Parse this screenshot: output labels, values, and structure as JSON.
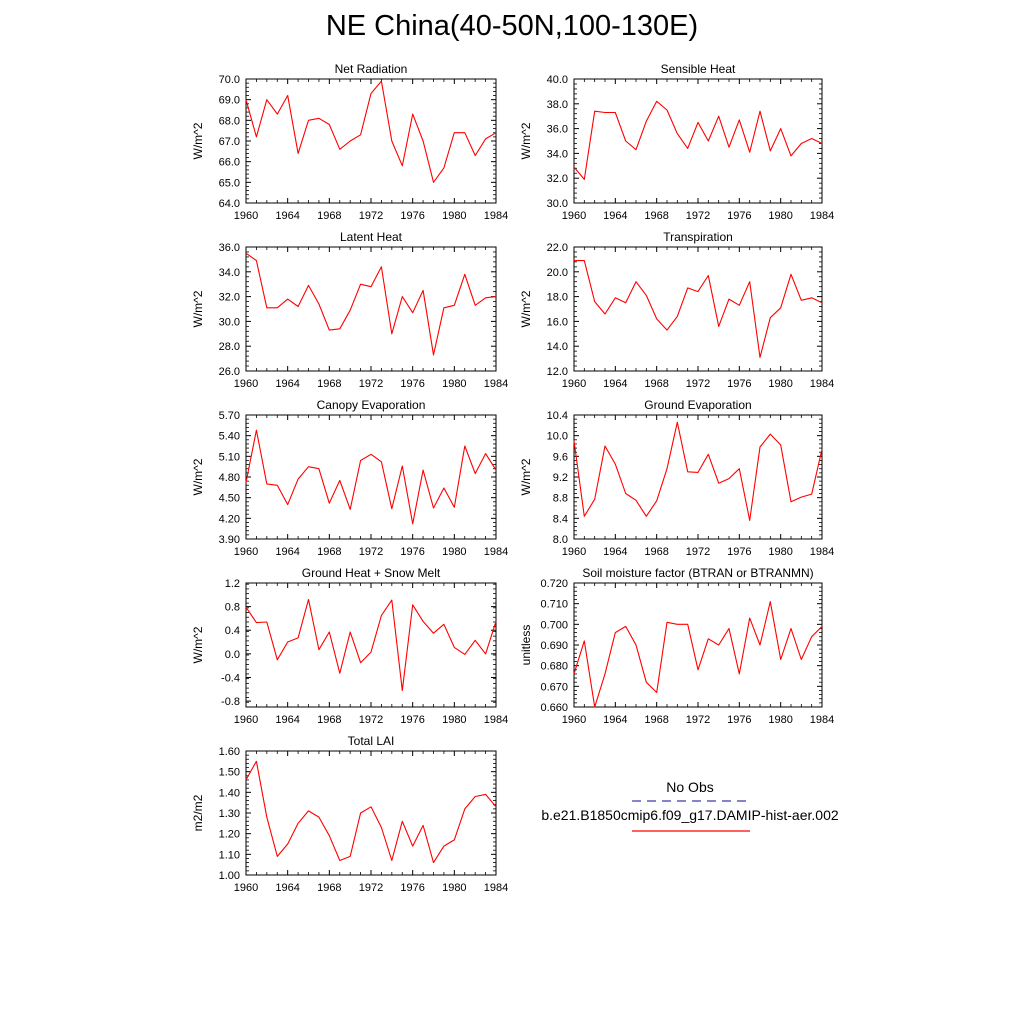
{
  "title": "NE China(40-50N,100-130E)",
  "colors": {
    "model_line": "#ff0000",
    "obs_line": "#3b3bb0",
    "axes": "#000000"
  },
  "legend": {
    "obs_label": "No Obs",
    "model_label": "b.e21.B1850cmip6.f09_g17.DAMIP-hist-aer.002"
  },
  "chart_data": [
    {
      "type": "line",
      "title": "Net Radiation",
      "xlabel": "",
      "ylabel": "W/m^2",
      "xlim": [
        1960,
        1984
      ],
      "ylim": [
        64.0,
        70.0
      ],
      "xticks": [
        1960,
        1964,
        1968,
        1972,
        1976,
        1980,
        1984
      ],
      "yticks": [
        "64.0",
        "65.0",
        "66.0",
        "67.0",
        "68.0",
        "69.0",
        "70.0"
      ],
      "x": [
        1960,
        1961,
        1962,
        1963,
        1964,
        1965,
        1966,
        1967,
        1968,
        1969,
        1970,
        1971,
        1972,
        1973,
        1974,
        1975,
        1976,
        1977,
        1978,
        1979,
        1980,
        1981,
        1982,
        1983,
        1984
      ],
      "values": [
        69.0,
        67.2,
        69.0,
        68.3,
        69.2,
        66.4,
        68.0,
        68.1,
        67.8,
        66.6,
        67.0,
        67.3,
        69.3,
        69.9,
        67.0,
        65.8,
        68.3,
        67.0,
        65.0,
        65.7,
        67.4,
        67.4,
        66.3,
        67.1,
        67.4
      ]
    },
    {
      "type": "line",
      "title": "Sensible Heat",
      "xlabel": "",
      "ylabel": "W/m^2",
      "xlim": [
        1960,
        1984
      ],
      "ylim": [
        30.0,
        40.0
      ],
      "xticks": [
        1960,
        1964,
        1968,
        1972,
        1976,
        1980,
        1984
      ],
      "yticks": [
        "30.0",
        "32.0",
        "34.0",
        "36.0",
        "38.0",
        "40.0"
      ],
      "x": [
        1960,
        1961,
        1962,
        1963,
        1964,
        1965,
        1966,
        1967,
        1968,
        1969,
        1970,
        1971,
        1972,
        1973,
        1974,
        1975,
        1976,
        1977,
        1978,
        1979,
        1980,
        1981,
        1982,
        1983,
        1984
      ],
      "values": [
        32.9,
        31.9,
        37.4,
        37.3,
        37.3,
        35.0,
        34.3,
        36.6,
        38.2,
        37.5,
        35.6,
        34.4,
        36.5,
        35.0,
        37.0,
        34.5,
        36.7,
        34.1,
        37.4,
        34.2,
        36.0,
        33.8,
        34.8,
        35.2,
        34.8
      ]
    },
    {
      "type": "line",
      "title": "Latent Heat",
      "xlabel": "",
      "ylabel": "W/m^2",
      "xlim": [
        1960,
        1984
      ],
      "ylim": [
        26.0,
        36.0
      ],
      "xticks": [
        1960,
        1964,
        1968,
        1972,
        1976,
        1980,
        1984
      ],
      "yticks": [
        "26.0",
        "28.0",
        "30.0",
        "32.0",
        "34.0",
        "36.0"
      ],
      "x": [
        1960,
        1961,
        1962,
        1963,
        1964,
        1965,
        1966,
        1967,
        1968,
        1969,
        1970,
        1971,
        1972,
        1973,
        1974,
        1975,
        1976,
        1977,
        1978,
        1979,
        1980,
        1981,
        1982,
        1983,
        1984
      ],
      "values": [
        35.5,
        34.9,
        31.1,
        31.1,
        31.8,
        31.2,
        32.9,
        31.4,
        29.3,
        29.4,
        30.9,
        33.0,
        32.8,
        34.4,
        29.0,
        32.0,
        30.7,
        32.5,
        27.3,
        31.1,
        31.3,
        33.8,
        31.3,
        31.9,
        32.0
      ]
    },
    {
      "type": "line",
      "title": "Transpiration",
      "xlabel": "",
      "ylabel": "W/m^2",
      "xlim": [
        1960,
        1984
      ],
      "ylim": [
        12.0,
        22.0
      ],
      "xticks": [
        1960,
        1964,
        1968,
        1972,
        1976,
        1980,
        1984
      ],
      "yticks": [
        "12.0",
        "14.0",
        "16.0",
        "18.0",
        "20.0",
        "22.0"
      ],
      "x": [
        1960,
        1961,
        1962,
        1963,
        1964,
        1965,
        1966,
        1967,
        1968,
        1969,
        1970,
        1971,
        1972,
        1973,
        1974,
        1975,
        1976,
        1977,
        1978,
        1979,
        1980,
        1981,
        1982,
        1983,
        1984
      ],
      "values": [
        20.9,
        20.9,
        17.6,
        16.6,
        17.9,
        17.5,
        19.2,
        18.1,
        16.2,
        15.3,
        16.4,
        18.7,
        18.4,
        19.7,
        15.6,
        17.8,
        17.3,
        19.2,
        13.1,
        16.3,
        17.1,
        19.8,
        17.7,
        17.9,
        17.5
      ]
    },
    {
      "type": "line",
      "title": "Canopy Evaporation",
      "xlabel": "",
      "ylabel": "W/m^2",
      "xlim": [
        1960,
        1984
      ],
      "ylim": [
        3.9,
        5.7
      ],
      "xticks": [
        1960,
        1964,
        1968,
        1972,
        1976,
        1980,
        1984
      ],
      "yticks": [
        "3.90",
        "4.20",
        "4.50",
        "4.80",
        "5.10",
        "5.40",
        "5.70"
      ],
      "x": [
        1960,
        1961,
        1962,
        1963,
        1964,
        1965,
        1966,
        1967,
        1968,
        1969,
        1970,
        1971,
        1972,
        1973,
        1974,
        1975,
        1976,
        1977,
        1978,
        1979,
        1980,
        1981,
        1982,
        1983,
        1984
      ],
      "values": [
        4.72,
        5.48,
        4.7,
        4.68,
        4.4,
        4.77,
        4.95,
        4.92,
        4.42,
        4.75,
        4.33,
        5.04,
        5.13,
        5.02,
        4.34,
        4.96,
        4.12,
        4.9,
        4.35,
        4.64,
        4.36,
        5.25,
        4.85,
        5.14,
        4.9
      ]
    },
    {
      "type": "line",
      "title": "Ground Evaporation",
      "xlabel": "",
      "ylabel": "W/m^2",
      "xlim": [
        1960,
        1984
      ],
      "ylim": [
        8.0,
        10.4
      ],
      "xticks": [
        1960,
        1964,
        1968,
        1972,
        1976,
        1980,
        1984
      ],
      "yticks": [
        "8.0",
        "8.4",
        "8.8",
        "9.2",
        "9.6",
        "10.0",
        "10.4"
      ],
      "x": [
        1960,
        1961,
        1962,
        1963,
        1964,
        1965,
        1966,
        1967,
        1968,
        1969,
        1970,
        1971,
        1972,
        1973,
        1974,
        1975,
        1976,
        1977,
        1978,
        1979,
        1980,
        1981,
        1982,
        1983,
        1984
      ],
      "values": [
        9.9,
        8.44,
        8.77,
        9.8,
        9.45,
        8.88,
        8.75,
        8.44,
        8.74,
        9.36,
        10.26,
        9.3,
        9.29,
        9.64,
        9.08,
        9.17,
        9.36,
        8.36,
        9.78,
        10.03,
        9.82,
        8.72,
        8.81,
        8.87,
        9.74
      ]
    },
    {
      "type": "line",
      "title": "Ground Heat + Snow Melt",
      "xlabel": "",
      "ylabel": "W/m^2",
      "xlim": [
        1960,
        1984
      ],
      "ylim": [
        -0.9,
        1.2
      ],
      "xticks": [
        1960,
        1964,
        1968,
        1972,
        1976,
        1980,
        1984
      ],
      "yticks": [
        "-0.8",
        "-0.4",
        "0.0",
        "0.4",
        "0.8",
        "1.2"
      ],
      "x": [
        1960,
        1961,
        1962,
        1963,
        1964,
        1965,
        1966,
        1967,
        1968,
        1969,
        1970,
        1971,
        1972,
        1973,
        1974,
        1975,
        1976,
        1977,
        1978,
        1979,
        1980,
        1981,
        1982,
        1983,
        1984
      ],
      "values": [
        0.79,
        0.53,
        0.54,
        -0.1,
        0.2,
        0.27,
        0.92,
        0.07,
        0.37,
        -0.33,
        0.37,
        -0.15,
        0.03,
        0.65,
        0.91,
        -0.62,
        0.83,
        0.55,
        0.35,
        0.5,
        0.11,
        -0.01,
        0.23,
        0.0,
        0.55
      ]
    },
    {
      "type": "line",
      "title": "Soil moisture factor (BTRAN or BTRANMN)",
      "xlabel": "",
      "ylabel": "unitless",
      "xlim": [
        1960,
        1984
      ],
      "ylim": [
        0.66,
        0.72
      ],
      "xticks": [
        1960,
        1964,
        1968,
        1972,
        1976,
        1980,
        1984
      ],
      "yticks": [
        "0.660",
        "0.670",
        "0.680",
        "0.690",
        "0.700",
        "0.710",
        "0.720"
      ],
      "x": [
        1960,
        1961,
        1962,
        1963,
        1964,
        1965,
        1966,
        1967,
        1968,
        1969,
        1970,
        1971,
        1972,
        1973,
        1974,
        1975,
        1976,
        1977,
        1978,
        1979,
        1980,
        1981,
        1982,
        1983,
        1984
      ],
      "values": [
        0.676,
        0.692,
        0.66,
        0.676,
        0.696,
        0.699,
        0.69,
        0.672,
        0.667,
        0.701,
        0.7,
        0.7,
        0.678,
        0.693,
        0.69,
        0.698,
        0.676,
        0.703,
        0.69,
        0.711,
        0.683,
        0.698,
        0.683,
        0.694,
        0.699
      ]
    },
    {
      "type": "line",
      "title": "Total LAI",
      "xlabel": "",
      "ylabel": "m2/m2",
      "xlim": [
        1960,
        1984
      ],
      "ylim": [
        1.0,
        1.6
      ],
      "xticks": [
        1960,
        1964,
        1968,
        1972,
        1976,
        1980,
        1984
      ],
      "yticks": [
        "1.00",
        "1.10",
        "1.20",
        "1.30",
        "1.40",
        "1.50",
        "1.60"
      ],
      "x": [
        1960,
        1961,
        1962,
        1963,
        1964,
        1965,
        1966,
        1967,
        1968,
        1969,
        1970,
        1971,
        1972,
        1973,
        1974,
        1975,
        1976,
        1977,
        1978,
        1979,
        1980,
        1981,
        1982,
        1983,
        1984
      ],
      "values": [
        1.46,
        1.55,
        1.28,
        1.09,
        1.15,
        1.25,
        1.31,
        1.28,
        1.19,
        1.07,
        1.09,
        1.3,
        1.33,
        1.23,
        1.07,
        1.26,
        1.14,
        1.24,
        1.06,
        1.14,
        1.17,
        1.32,
        1.38,
        1.39,
        1.33
      ]
    }
  ]
}
